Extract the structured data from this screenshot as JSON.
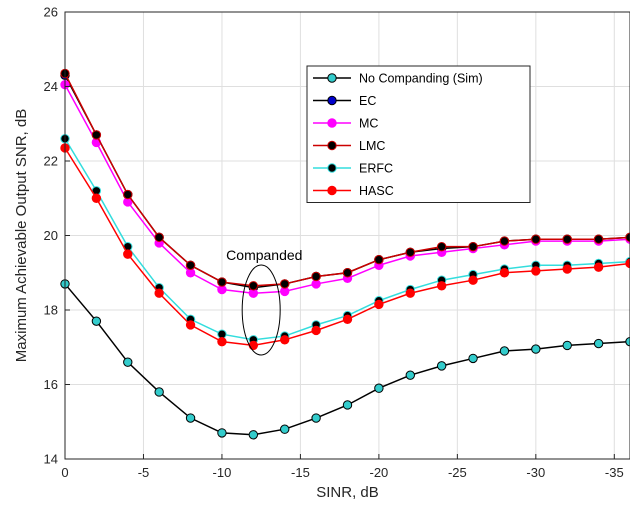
{
  "chart_data": {
    "type": "line",
    "xlabel": "SINR, dB",
    "ylabel": "Maximum Achievable Output SNR, dB",
    "xlim": [
      0,
      -36
    ],
    "ylim": [
      14,
      26
    ],
    "grid": true,
    "legend_position": "top-right",
    "x_ticks": [
      0,
      -5,
      -10,
      -15,
      -20,
      -25,
      -30,
      -35
    ],
    "x_tick_labels": [
      "0",
      "-5",
      "-10",
      "-15",
      "-20",
      "-25",
      "-30",
      "-35"
    ],
    "y_ticks": [
      14,
      16,
      18,
      20,
      22,
      24,
      26
    ],
    "y_tick_labels": [
      "14",
      "16",
      "18",
      "20",
      "22",
      "24",
      "26"
    ],
    "x": [
      0,
      -2,
      -4,
      -6,
      -8,
      -10,
      -12,
      -14,
      -16,
      -18,
      -20,
      -22,
      -24,
      -26,
      -28,
      -30,
      -32,
      -34,
      -36
    ],
    "series": [
      {
        "name": "No Companding (Sim)",
        "line_color": "#000000",
        "marker_color": "#33cccc",
        "values": [
          18.7,
          17.7,
          16.6,
          15.8,
          15.1,
          14.7,
          14.65,
          14.8,
          15.1,
          15.45,
          15.9,
          16.25,
          16.5,
          16.7,
          16.9,
          16.95,
          17.05,
          17.1,
          17.15
        ]
      },
      {
        "name": "EC",
        "line_color": "#000000",
        "marker_color": "#0000cc",
        "values": [
          24.3,
          22.7,
          21.1,
          19.95,
          19.2,
          18.75,
          18.6,
          18.7,
          18.9,
          19.0,
          19.35,
          19.55,
          19.65,
          19.7,
          19.85,
          19.9,
          19.9,
          19.9,
          19.95
        ]
      },
      {
        "name": "MC",
        "line_color": "#ff00ff",
        "marker_color": "#ff00ff",
        "values": [
          24.05,
          22.5,
          20.9,
          19.8,
          19.0,
          18.55,
          18.45,
          18.5,
          18.7,
          18.85,
          19.2,
          19.45,
          19.55,
          19.65,
          19.75,
          19.85,
          19.85,
          19.85,
          19.9
        ]
      },
      {
        "name": "LMC",
        "line_color": "#cc0000",
        "marker_color": "#000000",
        "values": [
          24.35,
          22.7,
          21.1,
          19.95,
          19.2,
          18.75,
          18.65,
          18.7,
          18.9,
          19.0,
          19.35,
          19.55,
          19.7,
          19.7,
          19.85,
          19.9,
          19.9,
          19.9,
          19.95
        ]
      },
      {
        "name": "ERFC",
        "line_color": "#33dddd",
        "marker_color": "#000000",
        "values": [
          22.6,
          21.2,
          19.7,
          18.6,
          17.75,
          17.35,
          17.2,
          17.3,
          17.6,
          17.85,
          18.25,
          18.55,
          18.8,
          18.95,
          19.1,
          19.2,
          19.2,
          19.25,
          19.3
        ]
      },
      {
        "name": "HASC",
        "line_color": "#ff0000",
        "marker_color": "#ff0000",
        "values": [
          22.35,
          21.0,
          19.5,
          18.45,
          17.6,
          17.15,
          17.05,
          17.2,
          17.45,
          17.75,
          18.15,
          18.45,
          18.65,
          18.8,
          19.0,
          19.05,
          19.1,
          19.15,
          19.25
        ]
      }
    ],
    "annotation": {
      "text": "Companded",
      "anchor_x": -12.5,
      "anchor_y": 18.0
    }
  }
}
